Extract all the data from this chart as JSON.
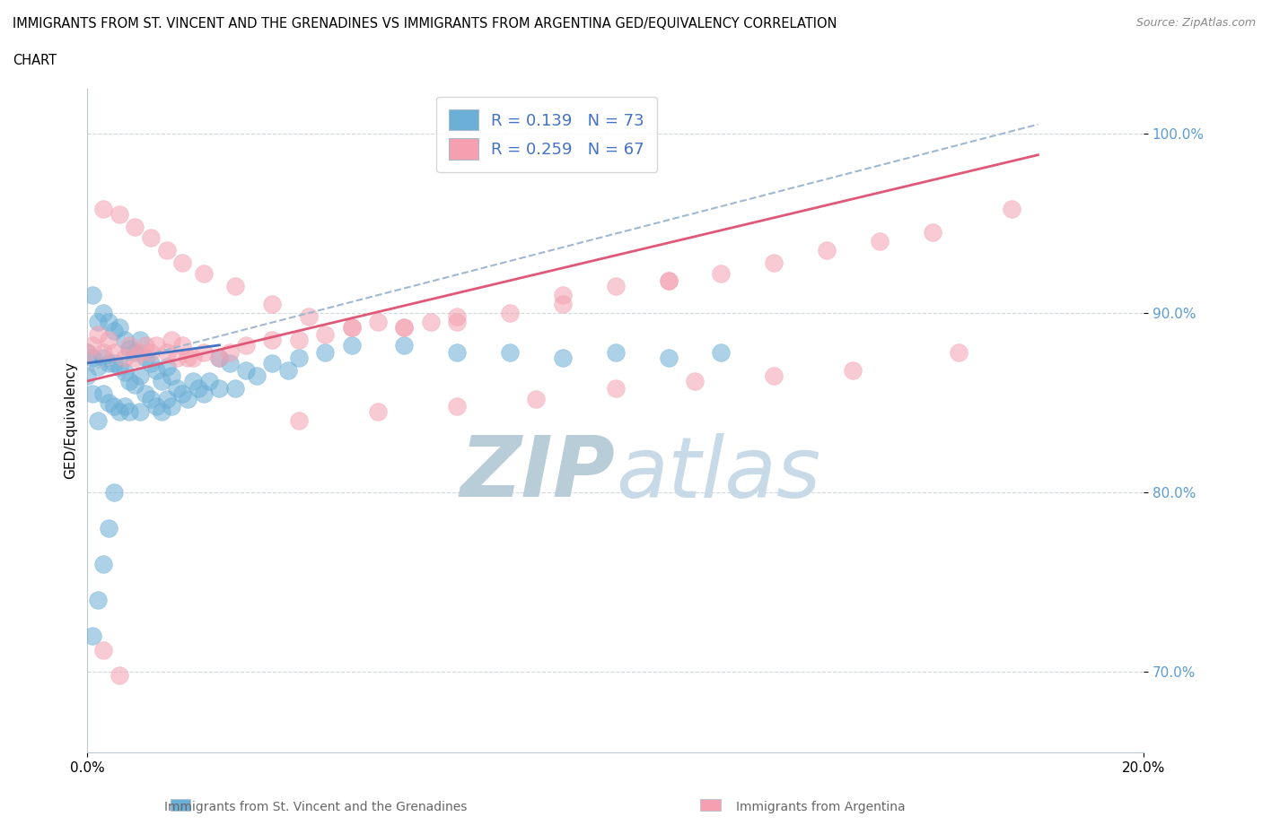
{
  "title_line1": "IMMIGRANTS FROM ST. VINCENT AND THE GRENADINES VS IMMIGRANTS FROM ARGENTINA GED/EQUIVALENCY CORRELATION",
  "title_line2": "CHART",
  "source_text": "Source: ZipAtlas.com",
  "ylabel": "GED/Equivalency",
  "xlim": [
    0.0,
    0.2
  ],
  "ylim": [
    0.655,
    1.025
  ],
  "x_ticks": [
    0.0,
    0.2
  ],
  "x_tick_labels": [
    "0.0%",
    "20.0%"
  ],
  "y_ticks": [
    0.7,
    0.8,
    0.9,
    1.0
  ],
  "y_tick_labels": [
    "70.0%",
    "80.0%",
    "90.0%",
    "100.0%"
  ],
  "legend_r1": "0.139",
  "legend_n1": "73",
  "legend_r2": "0.259",
  "legend_n2": "67",
  "color_blue": "#6baed6",
  "color_pink": "#f4a0b0",
  "line_blue_solid": "#4472c4",
  "line_pink_solid": "#e05878",
  "dashed_line_color": "#a0b8d0",
  "watermark_color": "#ccdde8",
  "blue_scatter_x": [
    0.0,
    0.0,
    0.001,
    0.001,
    0.001,
    0.002,
    0.002,
    0.002,
    0.003,
    0.003,
    0.003,
    0.004,
    0.004,
    0.004,
    0.005,
    0.005,
    0.005,
    0.006,
    0.006,
    0.006,
    0.007,
    0.007,
    0.007,
    0.008,
    0.008,
    0.008,
    0.009,
    0.009,
    0.01,
    0.01,
    0.01,
    0.011,
    0.011,
    0.012,
    0.012,
    0.013,
    0.013,
    0.014,
    0.014,
    0.015,
    0.015,
    0.016,
    0.016,
    0.017,
    0.018,
    0.019,
    0.02,
    0.021,
    0.022,
    0.023,
    0.025,
    0.025,
    0.027,
    0.028,
    0.03,
    0.032,
    0.035,
    0.038,
    0.04,
    0.045,
    0.05,
    0.06,
    0.07,
    0.08,
    0.09,
    0.1,
    0.11,
    0.12,
    0.001,
    0.002,
    0.003,
    0.004,
    0.005
  ],
  "blue_scatter_y": [
    0.878,
    0.865,
    0.91,
    0.875,
    0.855,
    0.895,
    0.87,
    0.84,
    0.9,
    0.875,
    0.855,
    0.895,
    0.872,
    0.85,
    0.89,
    0.872,
    0.848,
    0.892,
    0.87,
    0.845,
    0.885,
    0.867,
    0.848,
    0.88,
    0.862,
    0.845,
    0.878,
    0.86,
    0.885,
    0.865,
    0.845,
    0.875,
    0.855,
    0.872,
    0.852,
    0.868,
    0.848,
    0.862,
    0.845,
    0.87,
    0.852,
    0.865,
    0.848,
    0.858,
    0.855,
    0.852,
    0.862,
    0.858,
    0.855,
    0.862,
    0.875,
    0.858,
    0.872,
    0.858,
    0.868,
    0.865,
    0.872,
    0.868,
    0.875,
    0.878,
    0.882,
    0.882,
    0.878,
    0.878,
    0.875,
    0.878,
    0.875,
    0.878,
    0.72,
    0.74,
    0.76,
    0.78,
    0.8
  ],
  "pink_scatter_x": [
    0.0,
    0.001,
    0.002,
    0.003,
    0.004,
    0.005,
    0.007,
    0.008,
    0.009,
    0.01,
    0.011,
    0.012,
    0.013,
    0.015,
    0.016,
    0.017,
    0.018,
    0.019,
    0.02,
    0.022,
    0.025,
    0.027,
    0.03,
    0.035,
    0.04,
    0.045,
    0.05,
    0.055,
    0.06,
    0.065,
    0.07,
    0.08,
    0.09,
    0.1,
    0.11,
    0.12,
    0.13,
    0.14,
    0.15,
    0.16,
    0.175,
    0.003,
    0.006,
    0.009,
    0.012,
    0.015,
    0.018,
    0.022,
    0.028,
    0.035,
    0.042,
    0.05,
    0.06,
    0.07,
    0.09,
    0.11,
    0.04,
    0.055,
    0.07,
    0.085,
    0.1,
    0.115,
    0.13,
    0.145,
    0.165,
    0.003,
    0.006
  ],
  "pink_scatter_y": [
    0.878,
    0.882,
    0.888,
    0.878,
    0.885,
    0.878,
    0.875,
    0.882,
    0.875,
    0.878,
    0.882,
    0.878,
    0.882,
    0.878,
    0.885,
    0.875,
    0.882,
    0.875,
    0.875,
    0.878,
    0.875,
    0.878,
    0.882,
    0.885,
    0.885,
    0.888,
    0.892,
    0.895,
    0.892,
    0.895,
    0.895,
    0.9,
    0.91,
    0.915,
    0.918,
    0.922,
    0.928,
    0.935,
    0.94,
    0.945,
    0.958,
    0.958,
    0.955,
    0.948,
    0.942,
    0.935,
    0.928,
    0.922,
    0.915,
    0.905,
    0.898,
    0.892,
    0.892,
    0.898,
    0.905,
    0.918,
    0.84,
    0.845,
    0.848,
    0.852,
    0.858,
    0.862,
    0.865,
    0.868,
    0.878,
    0.712,
    0.698
  ],
  "blue_line_x": [
    0.0,
    0.025
  ],
  "blue_line_y": [
    0.872,
    0.882
  ],
  "pink_line_x": [
    0.0,
    0.18
  ],
  "pink_line_y": [
    0.862,
    0.988
  ],
  "dash_line_x": [
    0.0,
    0.18
  ],
  "dash_line_y": [
    0.868,
    1.005
  ]
}
